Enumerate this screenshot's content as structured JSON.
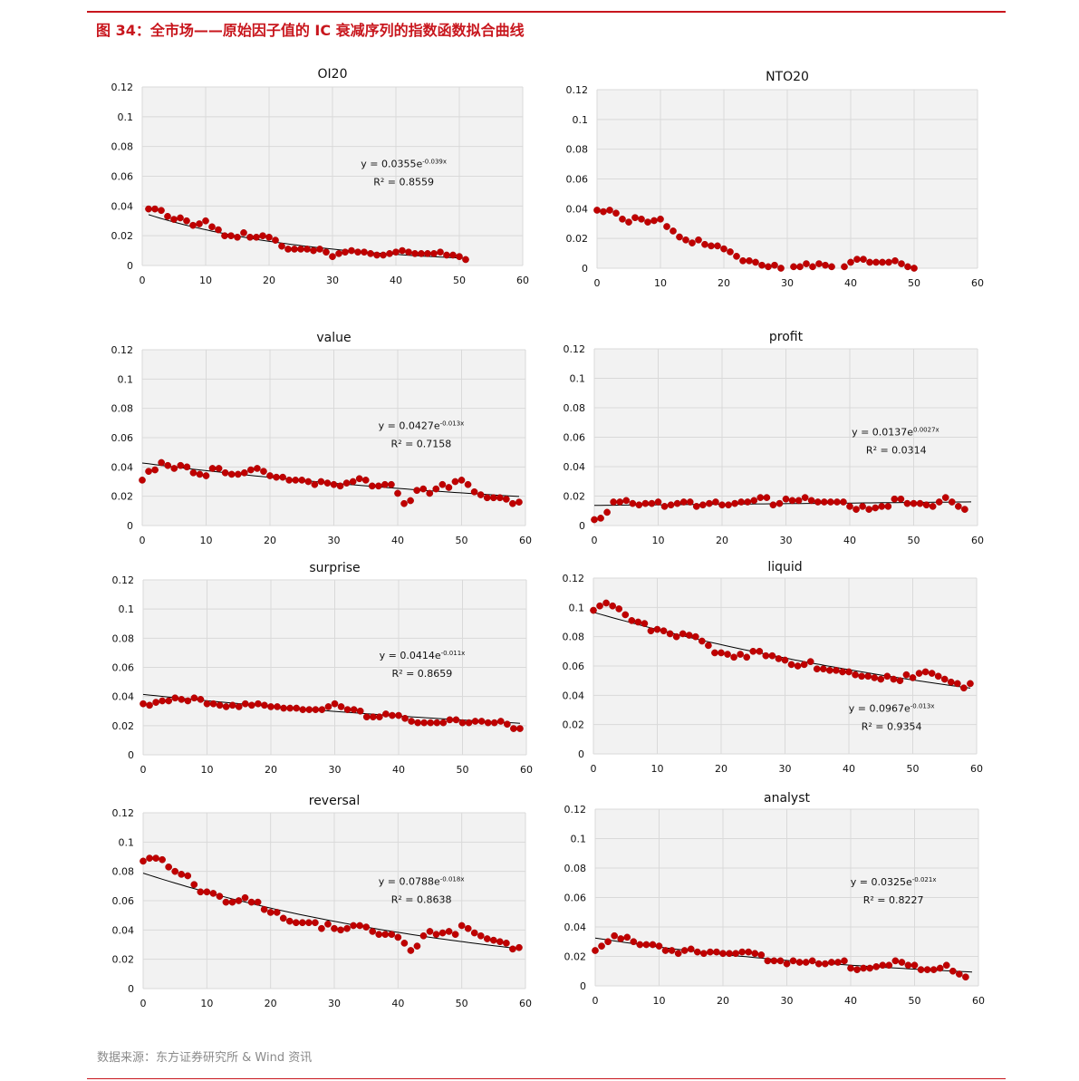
{
  "figure": {
    "title": "图 34：全市场——原始因子值的 IC 衰减序列的指数函数拟合曲线",
    "source": "数据来源：东方证券研究所 & Wind 资讯"
  },
  "colors": {
    "accent": "#c8161d",
    "marker": "#c00000",
    "trend": "#000000",
    "plot_bg": "#f2f2f2",
    "grid": "#d9d9d9"
  },
  "chart_data": [
    {
      "type": "scatter",
      "title": "OI20",
      "xlim": [
        0,
        60
      ],
      "ylim": [
        0,
        0.12
      ],
      "x_ticks": [
        "0",
        "10",
        "20",
        "30",
        "40",
        "50",
        "60"
      ],
      "y_ticks": [
        "0",
        "0.02",
        "0.04",
        "0.06",
        "0.08",
        "0.1",
        "0.12"
      ],
      "grid": true,
      "trendline": {
        "type": "exponential",
        "a": 0.0355,
        "b": -0.039
      },
      "equation": {
        "prefix": "y = 0.0355e",
        "exponent": "-0.039x",
        "r2": "R² = 0.8559"
      },
      "x_start": 1,
      "values": [
        0.038,
        0.038,
        0.037,
        0.033,
        0.031,
        0.032,
        0.03,
        0.027,
        0.028,
        0.03,
        0.026,
        0.024,
        0.02,
        0.02,
        0.019,
        0.022,
        0.019,
        0.019,
        0.02,
        0.019,
        0.017,
        0.013,
        0.011,
        0.011,
        0.011,
        0.011,
        0.01,
        0.011,
        0.009,
        0.006,
        0.008,
        0.009,
        0.01,
        0.009,
        0.009,
        0.008,
        0.007,
        0.007,
        0.008,
        0.009,
        0.01,
        0.009,
        0.008,
        0.008,
        0.008,
        0.008,
        0.009,
        0.007,
        0.007,
        0.006,
        0.004
      ]
    },
    {
      "type": "scatter",
      "title": "NTO20",
      "xlim": [
        0,
        60
      ],
      "ylim": [
        0,
        0.12
      ],
      "x_ticks": [
        "0",
        "10",
        "20",
        "30",
        "40",
        "50",
        "60"
      ],
      "y_ticks": [
        "0",
        "0.02",
        "0.04",
        "0.06",
        "0.08",
        "0.1",
        "0.12"
      ],
      "grid": true,
      "x_start": 0,
      "values": [
        0.039,
        0.038,
        0.039,
        0.037,
        0.033,
        0.031,
        0.034,
        0.033,
        0.031,
        0.032,
        0.033,
        0.028,
        0.025,
        0.021,
        0.019,
        0.017,
        0.019,
        0.016,
        0.015,
        0.015,
        0.013,
        0.011,
        0.008,
        0.005,
        0.005,
        0.004,
        0.002,
        0.001,
        0.002,
        0.0,
        null,
        0.001,
        0.001,
        0.003,
        0.001,
        0.003,
        0.002,
        0.001,
        null,
        0.001,
        0.004,
        0.006,
        0.006,
        0.004,
        0.004,
        0.004,
        0.004,
        0.005,
        0.003,
        0.001,
        0.0
      ]
    },
    {
      "type": "scatter",
      "title": "value",
      "xlim": [
        0,
        60
      ],
      "ylim": [
        0,
        0.12
      ],
      "x_ticks": [
        "0",
        "10",
        "20",
        "30",
        "40",
        "50",
        "60"
      ],
      "y_ticks": [
        "0",
        "0.02",
        "0.04",
        "0.06",
        "0.08",
        "0.1",
        "0.12"
      ],
      "grid": true,
      "trendline": {
        "type": "exponential",
        "a": 0.0427,
        "b": -0.013
      },
      "equation": {
        "prefix": "y = 0.0427e",
        "exponent": "-0.013x",
        "r2": "R² = 0.7158"
      },
      "x_start": 0,
      "values": [
        0.031,
        0.037,
        0.038,
        0.043,
        0.041,
        0.039,
        0.041,
        0.04,
        0.036,
        0.035,
        0.034,
        0.039,
        0.039,
        0.036,
        0.035,
        0.035,
        0.036,
        0.038,
        0.039,
        0.037,
        0.034,
        0.033,
        0.033,
        0.031,
        0.031,
        0.031,
        0.03,
        0.028,
        0.03,
        0.029,
        0.028,
        0.027,
        0.029,
        0.03,
        0.032,
        0.031,
        0.027,
        0.027,
        0.028,
        0.028,
        0.022,
        0.015,
        0.017,
        0.024,
        0.025,
        0.022,
        0.025,
        0.028,
        0.026,
        0.03,
        0.031,
        0.028,
        0.023,
        0.021,
        0.019,
        0.019,
        0.019,
        0.018,
        0.015,
        0.016
      ]
    },
    {
      "type": "scatter",
      "title": "profit",
      "xlim": [
        0,
        60
      ],
      "ylim": [
        0,
        0.12
      ],
      "x_ticks": [
        "0",
        "10",
        "20",
        "30",
        "40",
        "50",
        "60"
      ],
      "y_ticks": [
        "0",
        "0.02",
        "0.04",
        "0.06",
        "0.08",
        "0.1",
        "0.12"
      ],
      "grid": true,
      "trendline": {
        "type": "exponential",
        "a": 0.0137,
        "b": 0.0027
      },
      "equation": {
        "prefix": "y = 0.0137e",
        "exponent": "0.0027x",
        "r2": "R² = 0.0314"
      },
      "x_start": 0,
      "values": [
        0.004,
        0.005,
        0.009,
        0.016,
        0.016,
        0.017,
        0.015,
        0.014,
        0.015,
        0.015,
        0.016,
        0.013,
        0.014,
        0.015,
        0.016,
        0.016,
        0.013,
        0.014,
        0.015,
        0.016,
        0.014,
        0.014,
        0.015,
        0.016,
        0.016,
        0.017,
        0.019,
        0.019,
        0.014,
        0.015,
        0.018,
        0.017,
        0.017,
        0.019,
        0.017,
        0.016,
        0.016,
        0.016,
        0.016,
        0.016,
        0.013,
        0.011,
        0.013,
        0.011,
        0.012,
        0.013,
        0.013,
        0.018,
        0.018,
        0.015,
        0.015,
        0.015,
        0.014,
        0.013,
        0.016,
        0.019,
        0.016,
        0.013,
        0.011,
        null
      ]
    },
    {
      "type": "scatter",
      "title": "surprise",
      "xlim": [
        0,
        60
      ],
      "ylim": [
        0,
        0.12
      ],
      "x_ticks": [
        "0",
        "10",
        "20",
        "30",
        "40",
        "50",
        "60"
      ],
      "y_ticks": [
        "0",
        "0.02",
        "0.04",
        "0.06",
        "0.08",
        "0.1",
        "0.12"
      ],
      "grid": true,
      "trendline": {
        "type": "exponential",
        "a": 0.0414,
        "b": -0.011
      },
      "equation": {
        "prefix": "y = 0.0414e",
        "exponent": "-0.011x",
        "r2": "R² = 0.8659"
      },
      "x_start": 0,
      "values": [
        0.035,
        0.034,
        0.036,
        0.037,
        0.037,
        0.039,
        0.038,
        0.037,
        0.039,
        0.038,
        0.035,
        0.035,
        0.034,
        0.033,
        0.034,
        0.033,
        0.035,
        0.034,
        0.035,
        0.034,
        0.033,
        0.033,
        0.032,
        0.032,
        0.032,
        0.031,
        0.031,
        0.031,
        0.031,
        0.033,
        0.035,
        0.033,
        0.031,
        0.031,
        0.03,
        0.026,
        0.026,
        0.026,
        0.028,
        0.027,
        0.027,
        0.025,
        0.023,
        0.022,
        0.022,
        0.022,
        0.022,
        0.022,
        0.024,
        0.024,
        0.022,
        0.022,
        0.023,
        0.023,
        0.022,
        0.022,
        0.023,
        0.021,
        0.018,
        0.018
      ]
    },
    {
      "type": "scatter",
      "title": "liquid",
      "xlim": [
        0,
        60
      ],
      "ylim": [
        0,
        0.12
      ],
      "x_ticks": [
        "0",
        "10",
        "20",
        "30",
        "40",
        "50",
        "60"
      ],
      "y_ticks": [
        "0",
        "0.02",
        "0.04",
        "0.06",
        "0.08",
        "0.1",
        "0.12"
      ],
      "grid": true,
      "trendline": {
        "type": "exponential",
        "a": 0.0967,
        "b": -0.013
      },
      "equation": {
        "prefix": "y = 0.0967e",
        "exponent": "-0.013x",
        "r2": "R² = 0.9354"
      },
      "x_start": 0,
      "values": [
        0.098,
        0.101,
        0.103,
        0.101,
        0.099,
        0.095,
        0.091,
        0.09,
        0.089,
        0.084,
        0.085,
        0.084,
        0.082,
        0.08,
        0.082,
        0.081,
        0.08,
        0.077,
        0.074,
        0.069,
        0.069,
        0.068,
        0.066,
        0.068,
        0.066,
        0.07,
        0.07,
        0.067,
        0.067,
        0.065,
        0.064,
        0.061,
        0.06,
        0.061,
        0.063,
        0.058,
        0.058,
        0.057,
        0.057,
        0.056,
        0.056,
        0.054,
        0.053,
        0.053,
        0.052,
        0.051,
        0.053,
        0.051,
        0.05,
        0.054,
        0.052,
        0.055,
        0.056,
        0.055,
        0.053,
        0.051,
        0.049,
        0.048,
        0.045,
        0.048
      ]
    },
    {
      "type": "scatter",
      "title": "reversal",
      "xlim": [
        0,
        60
      ],
      "ylim": [
        0,
        0.12
      ],
      "x_ticks": [
        "0",
        "10",
        "20",
        "30",
        "40",
        "50",
        "60"
      ],
      "y_ticks": [
        "0",
        "0.02",
        "0.04",
        "0.06",
        "0.08",
        "0.1",
        "0.12"
      ],
      "grid": true,
      "trendline": {
        "type": "exponential",
        "a": 0.0788,
        "b": -0.018
      },
      "equation": {
        "prefix": "y = 0.0788e",
        "exponent": "-0.018x",
        "r2": "R² = 0.8638"
      },
      "x_start": 0,
      "values": [
        0.087,
        0.089,
        0.089,
        0.088,
        0.083,
        0.08,
        0.078,
        0.077,
        0.071,
        0.066,
        0.066,
        0.065,
        0.063,
        0.059,
        0.059,
        0.06,
        0.062,
        0.059,
        0.059,
        0.054,
        0.052,
        0.052,
        0.048,
        0.046,
        0.045,
        0.045,
        0.045,
        0.045,
        0.041,
        0.044,
        0.041,
        0.04,
        0.041,
        0.043,
        0.043,
        0.042,
        0.039,
        0.037,
        0.037,
        0.037,
        0.035,
        0.031,
        0.026,
        0.029,
        0.036,
        0.039,
        0.037,
        0.038,
        0.039,
        0.037,
        0.043,
        0.041,
        0.038,
        0.036,
        0.034,
        0.033,
        0.032,
        0.031,
        0.027,
        0.028
      ]
    },
    {
      "type": "scatter",
      "title": "analyst",
      "xlim": [
        0,
        60
      ],
      "ylim": [
        0,
        0.12
      ],
      "x_ticks": [
        "0",
        "10",
        "20",
        "30",
        "40",
        "50",
        "60"
      ],
      "y_ticks": [
        "0",
        "0.02",
        "0.04",
        "0.06",
        "0.08",
        "0.1",
        "0.12"
      ],
      "grid": true,
      "trendline": {
        "type": "exponential",
        "a": 0.0325,
        "b": -0.021
      },
      "equation": {
        "prefix": "y = 0.0325e",
        "exponent": "-0.021x",
        "r2": "R² = 0.8227"
      },
      "x_start": 0,
      "values": [
        0.024,
        0.027,
        0.03,
        0.034,
        0.032,
        0.033,
        0.03,
        0.028,
        0.028,
        0.028,
        0.027,
        0.024,
        0.024,
        0.022,
        0.024,
        0.025,
        0.023,
        0.022,
        0.023,
        0.023,
        0.022,
        0.022,
        0.022,
        0.023,
        0.023,
        0.022,
        0.021,
        0.017,
        0.017,
        0.017,
        0.015,
        0.017,
        0.016,
        0.016,
        0.017,
        0.015,
        0.015,
        0.016,
        0.016,
        0.017,
        0.012,
        0.011,
        0.012,
        0.012,
        0.013,
        0.014,
        0.014,
        0.017,
        0.016,
        0.014,
        0.014,
        0.011,
        0.011,
        0.011,
        0.012,
        0.014,
        0.01,
        0.008,
        0.006,
        null
      ]
    }
  ]
}
